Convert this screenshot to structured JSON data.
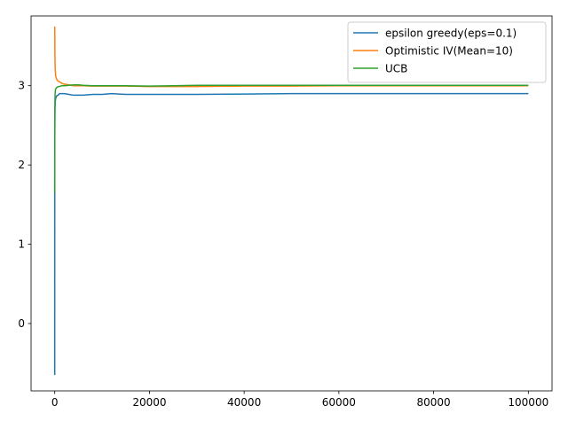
{
  "chart_data": {
    "type": "line",
    "title": "",
    "xlabel": "",
    "ylabel": "",
    "xlim": [
      -5000,
      105000
    ],
    "ylim": [
      -0.85,
      3.88
    ],
    "xticks": [
      0,
      20000,
      40000,
      60000,
      80000,
      100000
    ],
    "xtick_labels": [
      "0",
      "20000",
      "40000",
      "60000",
      "80000",
      "100000"
    ],
    "yticks": [
      0,
      1,
      2,
      3
    ],
    "ytick_labels": [
      "0",
      "1",
      "2",
      "3"
    ],
    "grid": false,
    "legend_position": "top-right",
    "series": [
      {
        "name": "epsilon greedy(eps=0.1)",
        "color": "#1f77b4",
        "x": [
          0,
          5,
          20,
          50,
          100,
          200,
          400,
          700,
          1000,
          1500,
          2000,
          3000,
          4000,
          5000,
          6000,
          8000,
          10000,
          12000,
          15000,
          20000,
          25000,
          30000,
          40000,
          50000,
          60000,
          70000,
          80000,
          90000,
          100000
        ],
        "y": [
          -0.65,
          1.6,
          2.4,
          2.7,
          2.8,
          2.84,
          2.87,
          2.88,
          2.9,
          2.9,
          2.9,
          2.89,
          2.88,
          2.88,
          2.88,
          2.89,
          2.89,
          2.9,
          2.89,
          2.89,
          2.89,
          2.89,
          2.895,
          2.9,
          2.9,
          2.9,
          2.9,
          2.9,
          2.9
        ]
      },
      {
        "name": "Optimistic IV(Mean=10)",
        "color": "#ff7f0e",
        "x": [
          0,
          10,
          30,
          60,
          100,
          200,
          300,
          500,
          700,
          1000,
          1500,
          2000,
          3000,
          4000,
          5000,
          6000,
          8000,
          10000,
          15000,
          20000,
          30000,
          40000,
          50000,
          60000,
          70000,
          80000,
          90000,
          100000
        ],
        "y": [
          3.72,
          3.74,
          3.45,
          3.3,
          3.2,
          3.12,
          3.1,
          3.07,
          3.06,
          3.05,
          3.03,
          3.02,
          3.01,
          3.0,
          3.0,
          3.0,
          2.995,
          2.995,
          2.995,
          2.99,
          2.99,
          2.995,
          2.995,
          3.0,
          3.0,
          3.0,
          3.0,
          3.0
        ]
      },
      {
        "name": "UCB",
        "color": "#2ca02c",
        "x": [
          0,
          5,
          15,
          40,
          80,
          150,
          300,
          500,
          800,
          1000,
          1500,
          2000,
          3000,
          4000,
          5000,
          6000,
          8000,
          10000,
          15000,
          20000,
          25000,
          30000,
          40000,
          50000,
          60000,
          70000,
          80000,
          90000,
          100000
        ],
        "y": [
          1.65,
          2.2,
          2.6,
          2.8,
          2.9,
          2.95,
          2.97,
          2.98,
          2.99,
          2.99,
          3.0,
          3.0,
          3.005,
          3.01,
          3.01,
          3.005,
          3.0,
          3.0,
          3.0,
          2.995,
          3.0,
          3.005,
          3.005,
          3.005,
          3.005,
          3.005,
          3.005,
          3.005,
          3.005
        ]
      }
    ]
  }
}
